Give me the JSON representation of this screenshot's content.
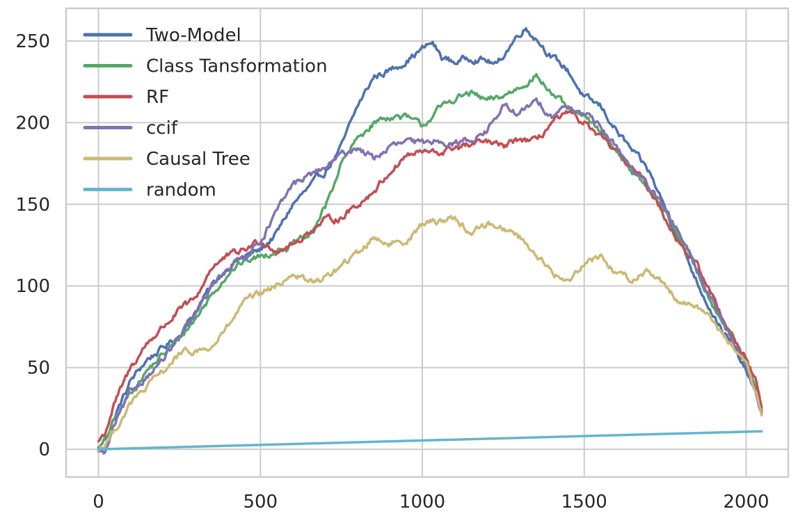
{
  "chart_data": {
    "type": "line",
    "title": "",
    "xlabel": "",
    "ylabel": "",
    "xlim": [
      -100,
      2130
    ],
    "ylim": [
      -17,
      270
    ],
    "xticks": [
      0,
      500,
      1000,
      1500,
      2000
    ],
    "yticks": [
      0,
      50,
      100,
      150,
      200,
      250
    ],
    "x_tick_labels": [
      "0",
      "500",
      "1000",
      "1500",
      "2000"
    ],
    "y_tick_labels": [
      "0",
      "50",
      "100",
      "150",
      "200",
      "250"
    ],
    "grid": true,
    "legend_position": "top-left",
    "series": [
      {
        "name": "Two-Model",
        "color": "#4C72B0",
        "points": [
          [
            0,
            0
          ],
          [
            20,
            6
          ],
          [
            50,
            20
          ],
          [
            100,
            42
          ],
          [
            150,
            55
          ],
          [
            200,
            62
          ],
          [
            250,
            70
          ],
          [
            300,
            85
          ],
          [
            350,
            100
          ],
          [
            400,
            112
          ],
          [
            450,
            118
          ],
          [
            500,
            122
          ],
          [
            550,
            132
          ],
          [
            600,
            150
          ],
          [
            650,
            160
          ],
          [
            700,
            170
          ],
          [
            750,
            185
          ],
          [
            800,
            210
          ],
          [
            850,
            228
          ],
          [
            900,
            232
          ],
          [
            950,
            238
          ],
          [
            1000,
            245
          ],
          [
            1030,
            249
          ],
          [
            1060,
            240
          ],
          [
            1100,
            237
          ],
          [
            1150,
            240
          ],
          [
            1200,
            238
          ],
          [
            1230,
            235
          ],
          [
            1260,
            244
          ],
          [
            1300,
            255
          ],
          [
            1320,
            258
          ],
          [
            1360,
            250
          ],
          [
            1400,
            240
          ],
          [
            1450,
            232
          ],
          [
            1500,
            215
          ],
          [
            1550,
            210
          ],
          [
            1600,
            195
          ],
          [
            1650,
            182
          ],
          [
            1700,
            170
          ],
          [
            1750,
            148
          ],
          [
            1800,
            125
          ],
          [
            1850,
            102
          ],
          [
            1900,
            82
          ],
          [
            1950,
            65
          ],
          [
            2000,
            48
          ],
          [
            2030,
            33
          ],
          [
            2048,
            22
          ]
        ]
      },
      {
        "name": "Class Tansformation",
        "color": "#55A868",
        "points": [
          [
            0,
            0
          ],
          [
            20,
            5
          ],
          [
            50,
            18
          ],
          [
            100,
            35
          ],
          [
            150,
            48
          ],
          [
            200,
            58
          ],
          [
            250,
            68
          ],
          [
            300,
            80
          ],
          [
            350,
            95
          ],
          [
            400,
            108
          ],
          [
            450,
            115
          ],
          [
            500,
            118
          ],
          [
            550,
            122
          ],
          [
            600,
            125
          ],
          [
            650,
            130
          ],
          [
            700,
            148
          ],
          [
            750,
            175
          ],
          [
            800,
            190
          ],
          [
            850,
            200
          ],
          [
            900,
            204
          ],
          [
            950,
            203
          ],
          [
            1000,
            198
          ],
          [
            1050,
            208
          ],
          [
            1100,
            215
          ],
          [
            1150,
            218
          ],
          [
            1200,
            213
          ],
          [
            1250,
            216
          ],
          [
            1300,
            222
          ],
          [
            1350,
            229
          ],
          [
            1400,
            218
          ],
          [
            1450,
            208
          ],
          [
            1500,
            203
          ],
          [
            1550,
            195
          ],
          [
            1600,
            183
          ],
          [
            1650,
            170
          ],
          [
            1700,
            158
          ],
          [
            1750,
            145
          ],
          [
            1800,
            128
          ],
          [
            1850,
            108
          ],
          [
            1900,
            88
          ],
          [
            1950,
            72
          ],
          [
            2000,
            52
          ],
          [
            2030,
            36
          ],
          [
            2048,
            25
          ]
        ]
      },
      {
        "name": "RF",
        "color": "#C44E52",
        "points": [
          [
            0,
            5
          ],
          [
            20,
            10
          ],
          [
            50,
            28
          ],
          [
            100,
            50
          ],
          [
            150,
            65
          ],
          [
            200,
            75
          ],
          [
            250,
            85
          ],
          [
            300,
            92
          ],
          [
            350,
            112
          ],
          [
            400,
            118
          ],
          [
            450,
            122
          ],
          [
            500,
            128
          ],
          [
            550,
            122
          ],
          [
            600,
            125
          ],
          [
            650,
            133
          ],
          [
            700,
            140
          ],
          [
            750,
            142
          ],
          [
            800,
            150
          ],
          [
            850,
            158
          ],
          [
            900,
            170
          ],
          [
            950,
            180
          ],
          [
            1000,
            182
          ],
          [
            1050,
            181
          ],
          [
            1100,
            185
          ],
          [
            1150,
            186
          ],
          [
            1200,
            188
          ],
          [
            1250,
            185
          ],
          [
            1300,
            190
          ],
          [
            1350,
            188
          ],
          [
            1400,
            200
          ],
          [
            1450,
            205
          ],
          [
            1500,
            200
          ],
          [
            1550,
            190
          ],
          [
            1600,
            182
          ],
          [
            1650,
            172
          ],
          [
            1700,
            160
          ],
          [
            1750,
            142
          ],
          [
            1800,
            125
          ],
          [
            1850,
            112
          ],
          [
            1900,
            92
          ],
          [
            1950,
            72
          ],
          [
            2000,
            55
          ],
          [
            2030,
            42
          ],
          [
            2048,
            25
          ]
        ]
      },
      {
        "name": "ccif",
        "color": "#8172B2",
        "points": [
          [
            0,
            0
          ],
          [
            20,
            -3
          ],
          [
            50,
            15
          ],
          [
            100,
            35
          ],
          [
            150,
            45
          ],
          [
            200,
            55
          ],
          [
            250,
            68
          ],
          [
            300,
            82
          ],
          [
            350,
            100
          ],
          [
            400,
            112
          ],
          [
            450,
            118
          ],
          [
            500,
            128
          ],
          [
            550,
            145
          ],
          [
            600,
            162
          ],
          [
            650,
            168
          ],
          [
            700,
            172
          ],
          [
            750,
            180
          ],
          [
            800,
            185
          ],
          [
            850,
            178
          ],
          [
            900,
            185
          ],
          [
            950,
            188
          ],
          [
            1000,
            187
          ],
          [
            1050,
            190
          ],
          [
            1100,
            187
          ],
          [
            1150,
            190
          ],
          [
            1200,
            195
          ],
          [
            1250,
            210
          ],
          [
            1300,
            205
          ],
          [
            1350,
            213
          ],
          [
            1400,
            205
          ],
          [
            1450,
            210
          ],
          [
            1500,
            205
          ],
          [
            1550,
            197
          ],
          [
            1600,
            185
          ],
          [
            1650,
            172
          ],
          [
            1700,
            160
          ],
          [
            1750,
            146
          ],
          [
            1800,
            130
          ],
          [
            1850,
            108
          ],
          [
            1900,
            90
          ],
          [
            1950,
            70
          ],
          [
            2000,
            52
          ],
          [
            2030,
            36
          ],
          [
            2048,
            22
          ]
        ]
      },
      {
        "name": "Causal Tree",
        "color": "#CCB974",
        "points": [
          [
            0,
            0
          ],
          [
            20,
            3
          ],
          [
            50,
            12
          ],
          [
            100,
            28
          ],
          [
            150,
            38
          ],
          [
            200,
            48
          ],
          [
            250,
            58
          ],
          [
            300,
            60
          ],
          [
            350,
            62
          ],
          [
            400,
            75
          ],
          [
            450,
            90
          ],
          [
            500,
            95
          ],
          [
            550,
            100
          ],
          [
            600,
            108
          ],
          [
            650,
            102
          ],
          [
            700,
            105
          ],
          [
            750,
            112
          ],
          [
            800,
            120
          ],
          [
            850,
            130
          ],
          [
            900,
            126
          ],
          [
            950,
            128
          ],
          [
            1000,
            138
          ],
          [
            1050,
            140
          ],
          [
            1100,
            142
          ],
          [
            1150,
            132
          ],
          [
            1200,
            138
          ],
          [
            1250,
            136
          ],
          [
            1300,
            130
          ],
          [
            1350,
            120
          ],
          [
            1400,
            108
          ],
          [
            1450,
            102
          ],
          [
            1500,
            115
          ],
          [
            1550,
            118
          ],
          [
            1600,
            108
          ],
          [
            1650,
            104
          ],
          [
            1700,
            110
          ],
          [
            1750,
            100
          ],
          [
            1800,
            90
          ],
          [
            1850,
            88
          ],
          [
            1900,
            78
          ],
          [
            1950,
            65
          ],
          [
            2000,
            50
          ],
          [
            2030,
            34
          ],
          [
            2048,
            20
          ]
        ]
      },
      {
        "name": "random",
        "color": "#64B5CD",
        "points": [
          [
            0,
            0
          ],
          [
            2048,
            11
          ]
        ]
      }
    ]
  }
}
